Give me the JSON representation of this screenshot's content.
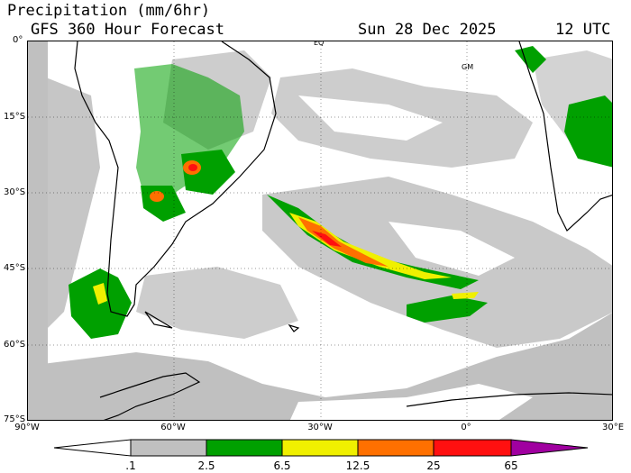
{
  "header": {
    "title": "Precipitation (mm/6hr)",
    "subtitle": "GFS 360 Hour Forecast",
    "date": "Sun 28 Dec 2025",
    "time": "12 UTC"
  },
  "map": {
    "lat_labels": [
      "0°",
      "15°S",
      "30°S",
      "45°S",
      "60°S",
      "75°S"
    ],
    "lon_labels": [
      "90°W",
      "60°W",
      "30°W",
      "0°",
      "30°E"
    ],
    "annotations": {
      "equator": "EQ",
      "greenwich": "GM"
    }
  },
  "colorbar": {
    "labels": [
      ".1",
      "2.5",
      "6.5",
      "12.5",
      "25",
      "65"
    ],
    "colors": [
      "#c0c0c0",
      "#00a000",
      "#f0f000",
      "#ff7000",
      "#ff1010",
      "#a000a0"
    ]
  }
}
